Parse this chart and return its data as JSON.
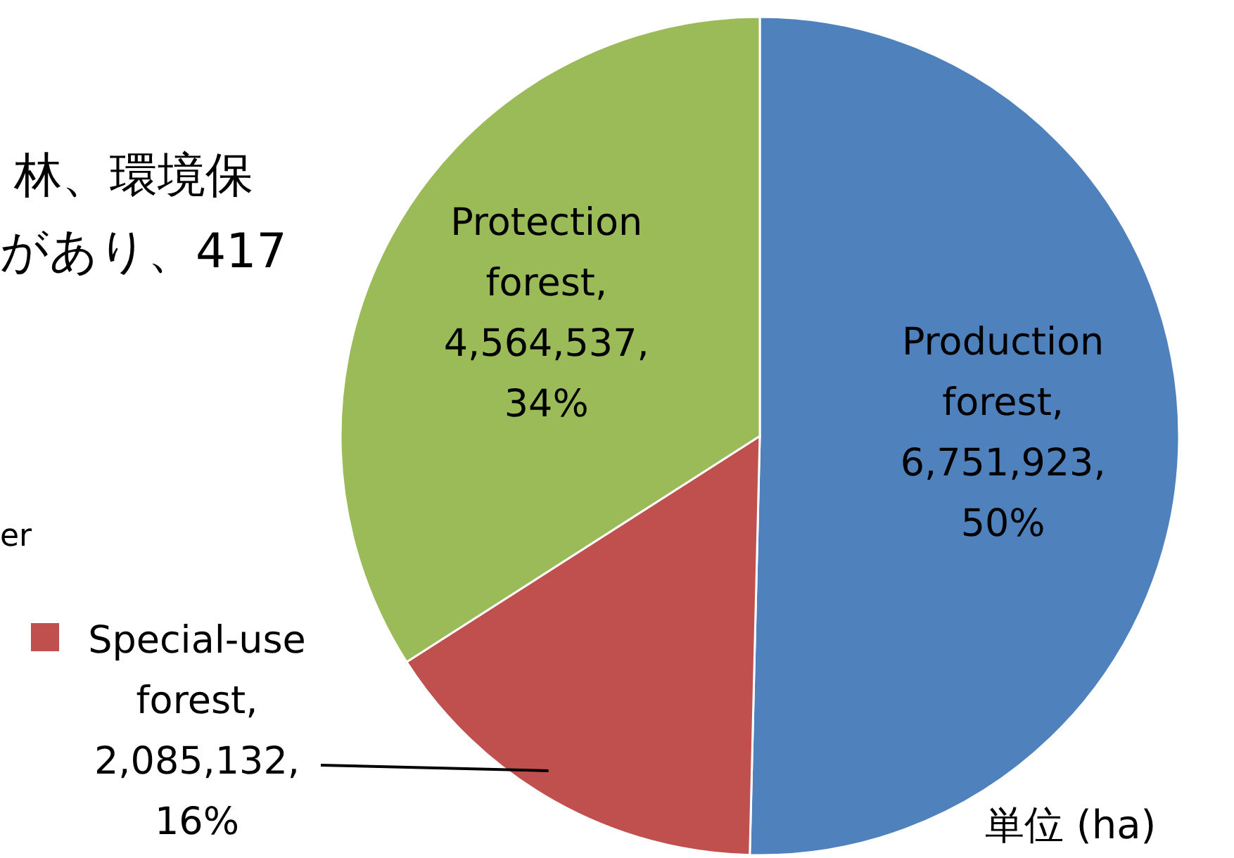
{
  "chart_data": {
    "type": "pie",
    "categories": [
      "Production forest",
      "Special-use forest",
      "Protection forest"
    ],
    "values": [
      6751923,
      2085132,
      4564537
    ],
    "colors": [
      "#4f81bd",
      "#c0504d",
      "#9bbb59"
    ],
    "value_labels": [
      ", 6,751,923, 50%",
      ", 2,085,132, 16%",
      ", 4,564,537, 34%"
    ],
    "annotations": [
      "林、環境保",
      "があり、417",
      "er",
      "単位 (ha)"
    ]
  }
}
